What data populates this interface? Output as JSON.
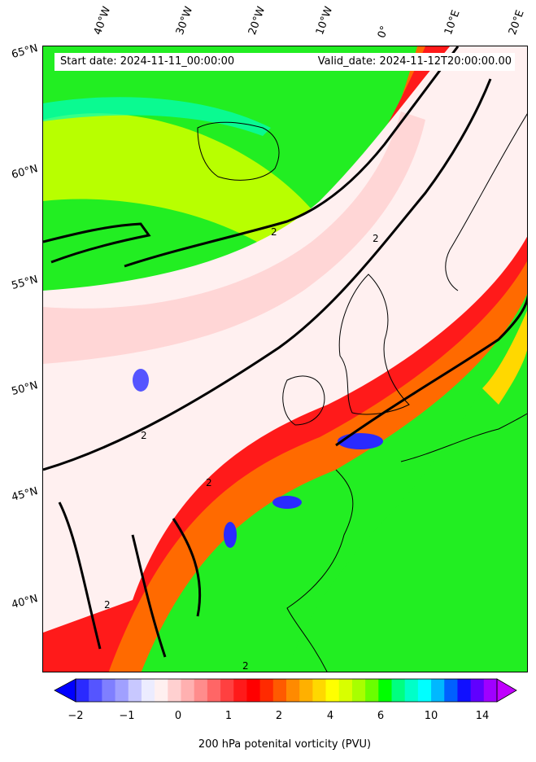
{
  "map": {
    "start_date": "Start date: 2024-11-11_00:00:00",
    "valid_date": "Valid_date: 2024-11-12T20:00:00.00",
    "contour_label": "2",
    "lon_labels": [
      "40°W",
      "30°W",
      "20°W",
      "10°W",
      "0°",
      "10°E",
      "20°E"
    ],
    "lat_labels": [
      "65°N",
      "60°N",
      "55°N",
      "50°N",
      "45°N",
      "40°N"
    ]
  },
  "colorbar": {
    "title": "200 hPa potenital vorticity (PVU)",
    "tick_labels": [
      "−2",
      "−1",
      "0",
      "1",
      "2",
      "4",
      "6",
      "10",
      "14"
    ],
    "colors": [
      "#0000ff",
      "#2a2aff",
      "#5555ff",
      "#7f7fff",
      "#a0a0ff",
      "#c8c8ff",
      "#ececff",
      "#fff0f0",
      "#ffd0d0",
      "#ffb0b0",
      "#ff8c8c",
      "#ff6666",
      "#ff4040",
      "#ff1a1a",
      "#ff0000",
      "#ff2a00",
      "#ff5a00",
      "#ff8a00",
      "#ffb000",
      "#ffd800",
      "#ffff00",
      "#d8ff00",
      "#a8ff00",
      "#6aff00",
      "#00ff00",
      "#00ff80",
      "#00ffc8",
      "#00ffff",
      "#00b8ff",
      "#0060ff",
      "#1010ff",
      "#6000ff",
      "#a000ff",
      "#c000ff"
    ]
  }
}
